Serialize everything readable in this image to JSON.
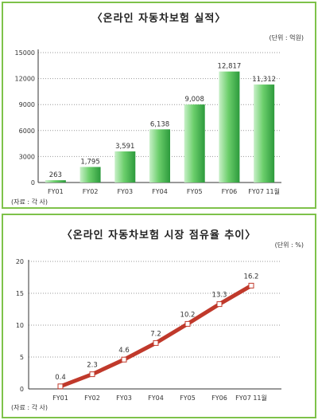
{
  "chart_data": [
    {
      "type": "bar",
      "title": "〈온라인 자동차보험 실적〉",
      "unit": "(단위 : 억원)",
      "source": "(자료 : 각 사)",
      "categories": [
        "FY01",
        "FY02",
        "FY03",
        "FY04",
        "FY05",
        "FY06",
        "FY07 11월"
      ],
      "values": [
        263,
        1795,
        3591,
        6138,
        9008,
        12817,
        11312
      ],
      "value_labels": [
        "263",
        "1,795",
        "3,591",
        "6,138",
        "9,008",
        "12,817",
        "11,312"
      ],
      "yticks": [
        "0",
        "3000",
        "6000",
        "9000",
        "12000",
        "15000"
      ],
      "ylim": [
        0,
        15000
      ],
      "grid": true,
      "colors": {
        "bar_light": "#c8f0c8",
        "bar_dark": "#2c9a3c",
        "grid": "#999999"
      }
    },
    {
      "type": "line",
      "title": "〈온라인 자동차보험 시장 점유율 추이〉",
      "unit": "(단위 : %)",
      "source": "(자료 : 각 사)",
      "categories": [
        "FY01",
        "FY02",
        "FY03",
        "FY04",
        "FY05",
        "FY06",
        "FY07 11월"
      ],
      "values": [
        0.4,
        2.3,
        4.6,
        7.2,
        10.2,
        13.3,
        16.2
      ],
      "value_labels": [
        "0.4",
        "2.3",
        "4.6",
        "7.2",
        "10.2",
        "13.3",
        "16.2"
      ],
      "yticks": [
        "0",
        "5",
        "10",
        "15",
        "20"
      ],
      "ylim": [
        0,
        20
      ],
      "grid": true,
      "colors": {
        "line": "#c0392b",
        "marker_fill": "#ffffff",
        "marker_stroke": "#c0392b",
        "grid": "#999999"
      }
    }
  ]
}
